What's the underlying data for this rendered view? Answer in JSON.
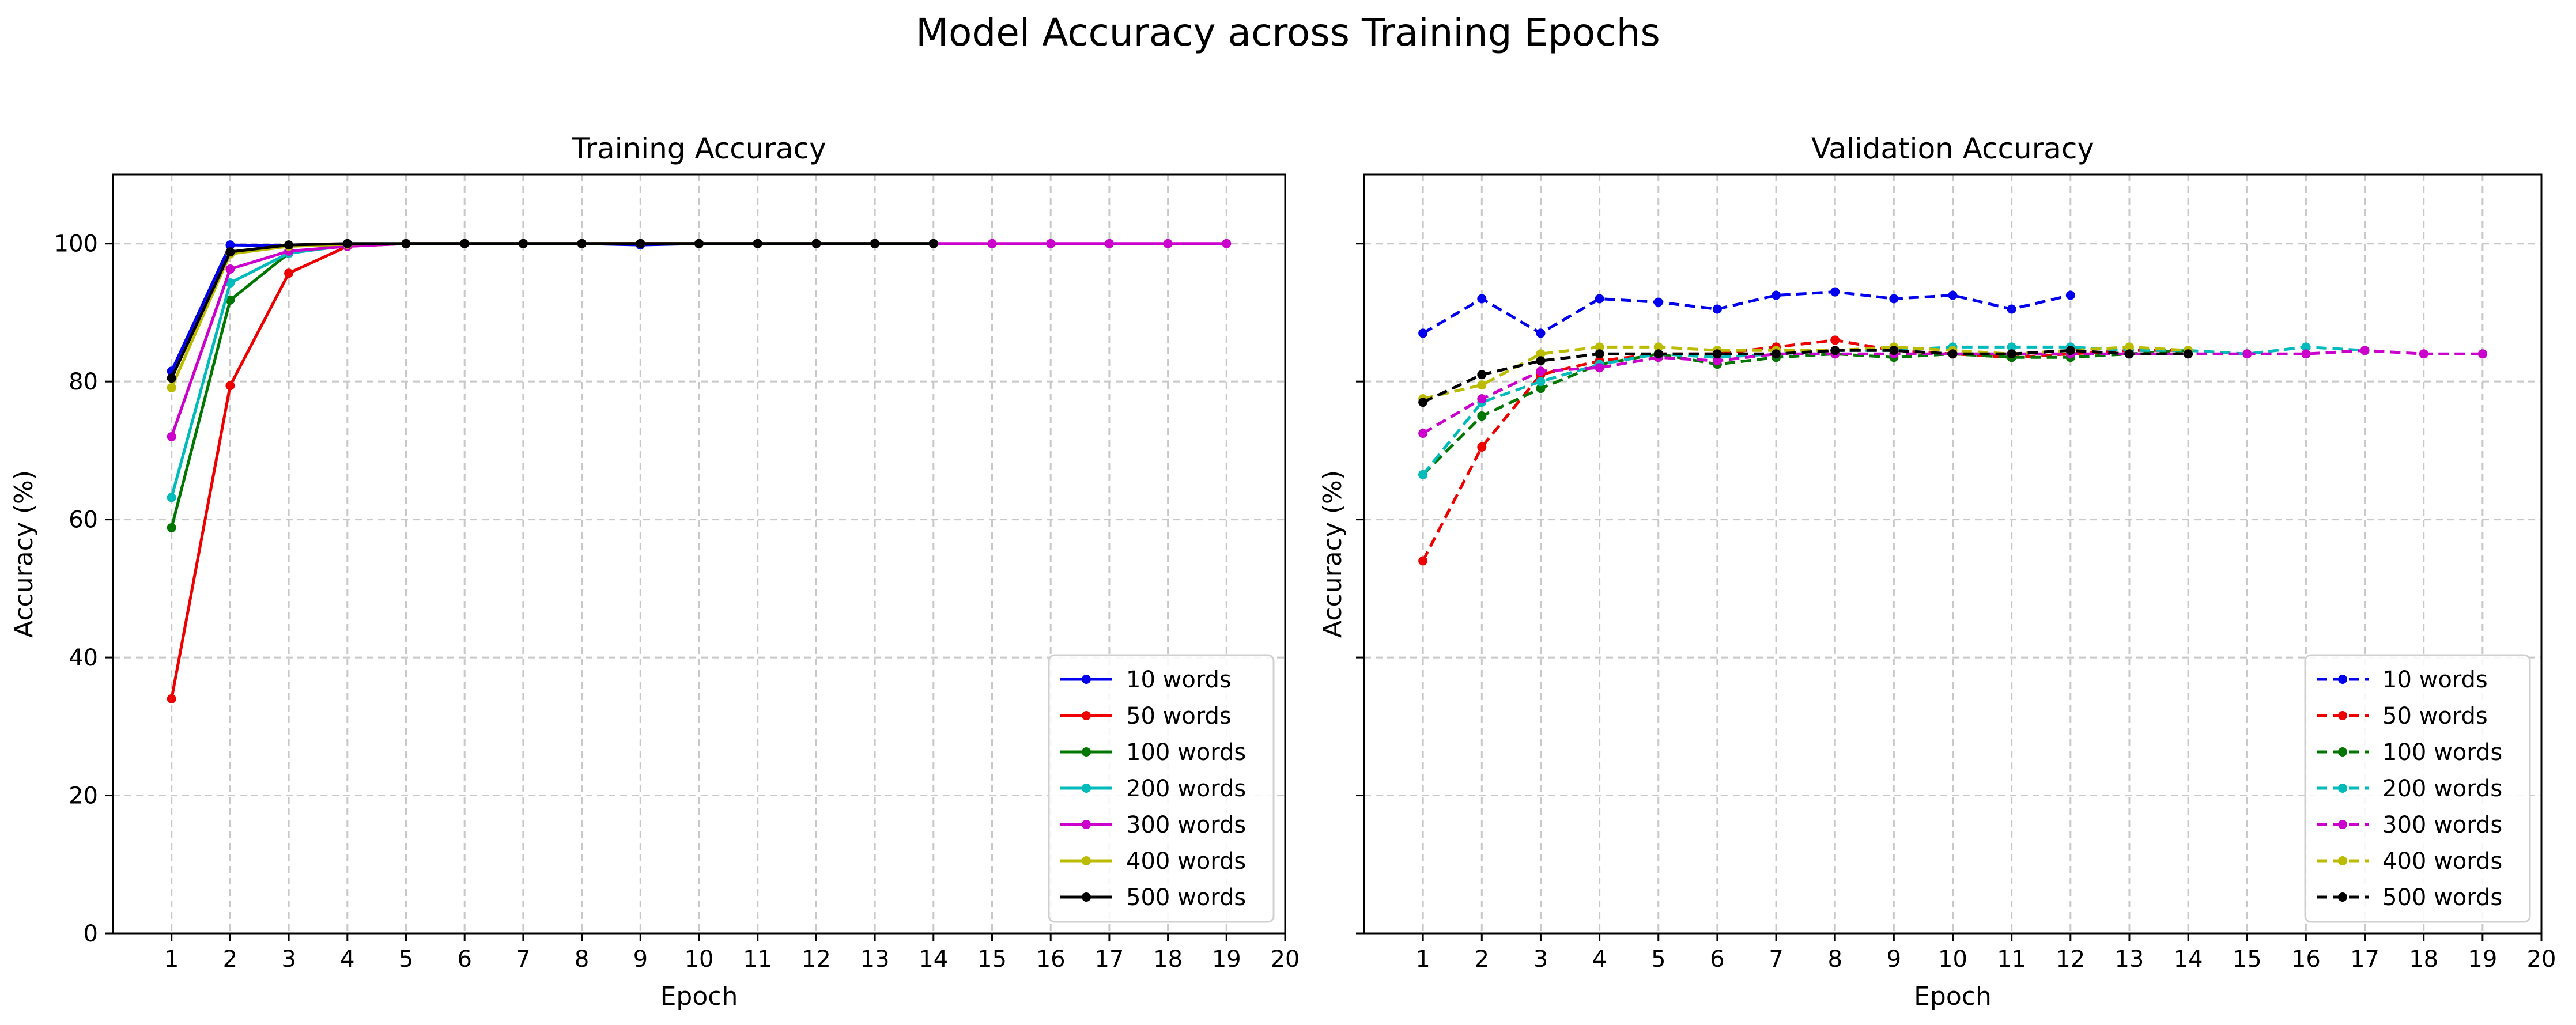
{
  "figure": {
    "title": "Model Accuracy across Training Epochs"
  },
  "chart_data": [
    {
      "type": "line",
      "title": "Training Accuracy",
      "xlabel": "Epoch",
      "ylabel": "Accuracy (%)",
      "xlim": [
        0,
        20
      ],
      "ylim": [
        0,
        110
      ],
      "xticks": [
        "1",
        "2",
        "3",
        "4",
        "5",
        "6",
        "7",
        "8",
        "9",
        "10",
        "11",
        "12",
        "13",
        "14",
        "15",
        "16",
        "17",
        "18",
        "19",
        "20"
      ],
      "yticks": [
        "0",
        "20",
        "40",
        "60",
        "80",
        "100"
      ],
      "grid": true,
      "line_style": "solid",
      "legend_position": "lower-right",
      "series": [
        {
          "name": "10 words",
          "color": "#0000ee",
          "x": [
            1,
            2,
            3,
            4,
            5,
            6,
            7,
            8,
            9,
            10,
            11,
            12,
            13,
            14
          ],
          "y": [
            81.5,
            99.8,
            99.7,
            99.8,
            100,
            100,
            100,
            100,
            99.8,
            100,
            100,
            100,
            100,
            100
          ]
        },
        {
          "name": "50 words",
          "color": "#ee0000",
          "x": [
            1,
            2,
            3,
            4,
            5,
            6,
            7,
            8,
            9,
            10,
            11,
            12,
            13,
            14
          ],
          "y": [
            34,
            79.4,
            95.7,
            99.6,
            100,
            100,
            100,
            100,
            100,
            100,
            100,
            100,
            100,
            100
          ]
        },
        {
          "name": "100 words",
          "color": "#007700",
          "x": [
            1,
            2,
            3,
            4,
            5,
            6,
            7,
            8,
            9,
            10,
            11,
            12,
            13,
            14
          ],
          "y": [
            58.8,
            91.8,
            98.6,
            99.8,
            100,
            100,
            100,
            100,
            100,
            100,
            100,
            100,
            100,
            100
          ]
        },
        {
          "name": "200 words",
          "color": "#00bbbb",
          "x": [
            1,
            2,
            3,
            4,
            5,
            6,
            7,
            8,
            9,
            10,
            11,
            12,
            13,
            14
          ],
          "y": [
            63.2,
            94.3,
            98.6,
            99.7,
            100,
            100,
            100,
            100,
            100,
            100,
            100,
            100,
            100,
            100
          ]
        },
        {
          "name": "300 words",
          "color": "#cc00cc",
          "x": [
            1,
            2,
            3,
            4,
            5,
            6,
            7,
            8,
            9,
            10,
            11,
            12,
            13,
            14,
            15,
            16,
            17,
            18,
            19
          ],
          "y": [
            72,
            96.3,
            98.9,
            99.6,
            100,
            100,
            100,
            100,
            100,
            100,
            100,
            100,
            100,
            100,
            100,
            100,
            100,
            100,
            100
          ]
        },
        {
          "name": "400 words",
          "color": "#bbbb00",
          "x": [
            1,
            2,
            3,
            4,
            5,
            6,
            7,
            8,
            9,
            10,
            11,
            12,
            13,
            14
          ],
          "y": [
            79.1,
            98.5,
            99.6,
            99.9,
            100,
            100,
            100,
            100,
            100,
            100,
            100,
            100,
            100,
            100
          ]
        },
        {
          "name": "500 words",
          "color": "#000000",
          "x": [
            1,
            2,
            3,
            4,
            5,
            6,
            7,
            8,
            9,
            10,
            11,
            12,
            13,
            14
          ],
          "y": [
            80.5,
            98.8,
            99.8,
            100,
            100,
            100,
            100,
            100,
            100,
            100,
            100,
            100,
            100,
            100
          ]
        }
      ]
    },
    {
      "type": "line",
      "title": "Validation Accuracy",
      "xlabel": "Epoch",
      "ylabel": "Accuracy (%)",
      "xlim": [
        0,
        20
      ],
      "ylim": [
        0,
        110
      ],
      "xticks": [
        "1",
        "2",
        "3",
        "4",
        "5",
        "6",
        "7",
        "8",
        "9",
        "10",
        "11",
        "12",
        "13",
        "14",
        "15",
        "16",
        "17",
        "18",
        "19",
        "20"
      ],
      "yticks": [
        "0",
        "20",
        "40",
        "60",
        "80",
        "100"
      ],
      "grid": true,
      "line_style": "dashed",
      "legend_position": "lower-right",
      "series": [
        {
          "name": "10 words",
          "color": "#0000ee",
          "x": [
            1,
            2,
            3,
            4,
            5,
            6,
            7,
            8,
            9,
            10,
            11,
            12
          ],
          "y": [
            87,
            92,
            87,
            92,
            91.5,
            90.5,
            92.5,
            93,
            92,
            92.5,
            90.5,
            92.5
          ]
        },
        {
          "name": "50 words",
          "color": "#ee0000",
          "x": [
            1,
            2,
            3,
            4,
            5,
            6,
            7,
            8,
            9,
            10,
            11,
            12,
            13,
            14
          ],
          "y": [
            54,
            70.5,
            81,
            83,
            84,
            84,
            85,
            86,
            84.5,
            84,
            83.5,
            84,
            84.5,
            84.5
          ]
        },
        {
          "name": "100 words",
          "color": "#007700",
          "x": [
            1,
            2,
            3,
            4,
            5,
            6,
            7,
            8,
            9,
            10,
            11,
            12,
            13,
            14
          ],
          "y": [
            66.5,
            75,
            79,
            82.5,
            84,
            82.5,
            83.5,
            84,
            83.5,
            84,
            83.5,
            83.5,
            84,
            84.5
          ]
        },
        {
          "name": "200 words",
          "color": "#00bbbb",
          "x": [
            1,
            2,
            3,
            4,
            5,
            6,
            7,
            8,
            9,
            10,
            11,
            12,
            13,
            14,
            15,
            16,
            17
          ],
          "y": [
            66.5,
            77,
            80,
            82.5,
            84,
            83.5,
            84,
            84.5,
            84.5,
            85,
            85,
            85,
            84.5,
            84.5,
            84,
            85,
            84.5
          ]
        },
        {
          "name": "300 words",
          "color": "#cc00cc",
          "x": [
            1,
            2,
            3,
            4,
            5,
            6,
            7,
            8,
            9,
            10,
            11,
            12,
            13,
            14,
            15,
            16,
            17,
            18,
            19
          ],
          "y": [
            72.5,
            77.5,
            81.5,
            82,
            83.5,
            83,
            84,
            84,
            84,
            84,
            84,
            84,
            84,
            84,
            84,
            84,
            84.5,
            84,
            84
          ]
        },
        {
          "name": "400 words",
          "color": "#bbbb00",
          "x": [
            1,
            2,
            3,
            4,
            5,
            6,
            7,
            8,
            9,
            10,
            11,
            12,
            13,
            14
          ],
          "y": [
            77.5,
            79.5,
            84,
            85,
            85,
            84.5,
            84.5,
            84.5,
            85,
            84.5,
            84,
            84.5,
            85,
            84.5
          ]
        },
        {
          "name": "500 words",
          "color": "#000000",
          "x": [
            1,
            2,
            3,
            4,
            5,
            6,
            7,
            8,
            9,
            10,
            11,
            12,
            13,
            14
          ],
          "y": [
            77,
            81,
            83,
            84,
            84,
            84,
            84,
            84.5,
            84.5,
            84,
            84,
            84.5,
            84,
            84
          ]
        }
      ]
    }
  ]
}
